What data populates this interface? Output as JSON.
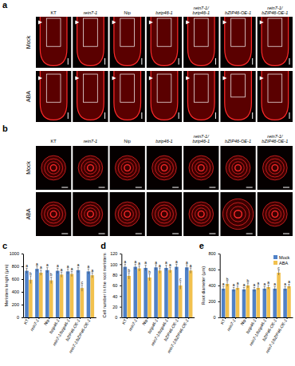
{
  "panels": {
    "a": {
      "label": "a",
      "rows": [
        "Mock",
        "ABA"
      ],
      "columns": [
        [
          "KT"
        ],
        [
          "rein7-1"
        ],
        [
          "Nip"
        ],
        [
          "bzip46-1"
        ],
        [
          "rein7-1/",
          "bzip46-1"
        ],
        [
          "bZIP46-OE-1"
        ],
        [
          "rein7-1/",
          "bZIP46-OE-1"
        ]
      ]
    },
    "b": {
      "label": "b",
      "rows": [
        "Mock",
        "ABA"
      ],
      "columns": [
        [
          "KT"
        ],
        [
          "rein7-1"
        ],
        [
          "Nip"
        ],
        [
          "bzip46-1"
        ],
        [
          "rein7-1/",
          "bzip46-1"
        ],
        [
          "bZIP46-OE-1"
        ],
        [
          "rein7-1/",
          "bZIP46-OE-1"
        ]
      ]
    }
  },
  "chart_data": [
    {
      "type": "bar",
      "title": "c",
      "y_label": "Meristem length (μm)",
      "categories": [
        "KT",
        "rein7-1",
        "Nip",
        "bzip46-1",
        "rein7-1/bzip46-1",
        "bZIP46-OE-1",
        "rein7-1/bZIP46-OE-1"
      ],
      "series": [
        {
          "color": "#4f81c7",
          "values": [
            730,
            760,
            740,
            730,
            720,
            740,
            720
          ],
          "errors": [
            40,
            40,
            40,
            40,
            40,
            40,
            40
          ],
          "letters": [
            "a",
            "a",
            "a",
            "a",
            "a",
            "a",
            "a"
          ]
        },
        {
          "color": "#f2c14e",
          "values": [
            590,
            700,
            580,
            670,
            680,
            460,
            660
          ],
          "errors": [
            60,
            40,
            50,
            40,
            40,
            50,
            40
          ],
          "letters": [
            "b",
            "a",
            "b",
            "a",
            "a",
            "c",
            "a"
          ]
        }
      ],
      "ylim": [
        0,
        1000
      ],
      "yticks": [
        0,
        200,
        400,
        600,
        800,
        1000
      ]
    },
    {
      "type": "bar",
      "title": "d",
      "y_label": "Cell number in the root meristem",
      "categories": [
        "KT",
        "rein7-1",
        "Nip",
        "bzip46-1",
        "rein7-1/bzip46-1",
        "bZIP46-OE-1",
        "rein7-1/bZIP46-OE-1"
      ],
      "series": [
        {
          "color": "#4f81c7",
          "values": [
            95,
            95,
            93,
            94,
            93,
            95,
            94
          ],
          "errors": [
            5,
            5,
            5,
            5,
            5,
            5,
            5
          ],
          "letters": [
            "a",
            "a",
            "a",
            "a",
            "a",
            "a",
            "a"
          ]
        },
        {
          "color": "#f2c14e",
          "values": [
            78,
            92,
            75,
            88,
            89,
            60,
            88
          ],
          "errors": [
            6,
            5,
            6,
            5,
            5,
            7,
            5
          ],
          "letters": [
            "b",
            "a",
            "b",
            "a",
            "a",
            "c",
            "a"
          ]
        }
      ],
      "ylim": [
        0,
        120
      ],
      "yticks": [
        0,
        20,
        40,
        60,
        80,
        100,
        120
      ]
    },
    {
      "type": "bar",
      "title": "e",
      "y_label": "Root diameter (μm)",
      "categories": [
        "KT",
        "rein7-1",
        "Nip",
        "bzip46-1",
        "rein7-1/bzip46-1",
        "bZIP46-OE-1",
        "rein7-1/bZIP46-OE-1"
      ],
      "series": [
        {
          "name": "Mock",
          "color": "#4f81c7",
          "values": [
            360,
            350,
            350,
            350,
            360,
            360,
            360
          ],
          "errors": [
            25,
            25,
            25,
            25,
            25,
            25,
            25
          ],
          "letters": [
            "a",
            "a",
            "a",
            "a",
            "a",
            "a",
            "a"
          ]
        },
        {
          "name": "ABA",
          "color": "#f2c14e",
          "values": [
            420,
            370,
            400,
            370,
            380,
            560,
            390
          ],
          "errors": [
            30,
            25,
            30,
            25,
            25,
            30,
            25
          ],
          "letters": [
            "b",
            "a",
            "b",
            "a",
            "a",
            "c",
            "a"
          ]
        }
      ],
      "ylim": [
        0,
        800
      ],
      "yticks": [
        0,
        200,
        400,
        600,
        800
      ],
      "legend": "top-right"
    }
  ]
}
